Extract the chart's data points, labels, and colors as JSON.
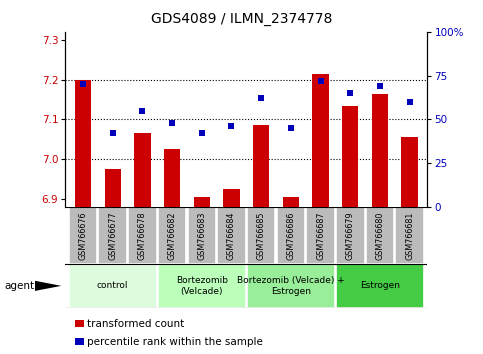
{
  "title": "GDS4089 / ILMN_2374778",
  "samples": [
    "GSM766676",
    "GSM766677",
    "GSM766678",
    "GSM766682",
    "GSM766683",
    "GSM766684",
    "GSM766685",
    "GSM766686",
    "GSM766687",
    "GSM766679",
    "GSM766680",
    "GSM766681"
  ],
  "transformed_count": [
    7.2,
    6.975,
    7.065,
    7.025,
    6.905,
    6.925,
    7.085,
    6.905,
    7.215,
    7.135,
    7.165,
    7.055
  ],
  "percentile_rank": [
    70,
    42,
    55,
    48,
    42,
    46,
    62,
    45,
    72,
    65,
    69,
    60
  ],
  "ylim_left": [
    6.88,
    7.32
  ],
  "ylim_right": [
    0,
    100
  ],
  "yticks_left": [
    6.9,
    7.0,
    7.1,
    7.2,
    7.3
  ],
  "yticks_right": [
    0,
    25,
    50,
    75,
    100
  ],
  "ytick_labels_right": [
    "0",
    "25",
    "50",
    "75",
    "100%"
  ],
  "bar_color": "#cc0000",
  "dot_color": "#0000bb",
  "groups": [
    {
      "label": "control",
      "start": 0,
      "end": 3,
      "color": "#ddfcdd"
    },
    {
      "label": "Bortezomib\n(Velcade)",
      "start": 3,
      "end": 6,
      "color": "#bbffbb"
    },
    {
      "label": "Bortezomib (Velcade) +\nEstrogen",
      "start": 6,
      "end": 9,
      "color": "#99ee99"
    },
    {
      "label": "Estrogen",
      "start": 9,
      "end": 12,
      "color": "#44cc44"
    }
  ],
  "agent_label": "agent",
  "legend_bar_label": "transformed count",
  "legend_dot_label": "percentile rank within the sample",
  "grid_dotted_at": [
    7.0,
    7.1,
    7.2
  ],
  "bar_width": 0.55,
  "sample_box_color": "#bbbbbb",
  "sample_box_edge": "#ffffff"
}
